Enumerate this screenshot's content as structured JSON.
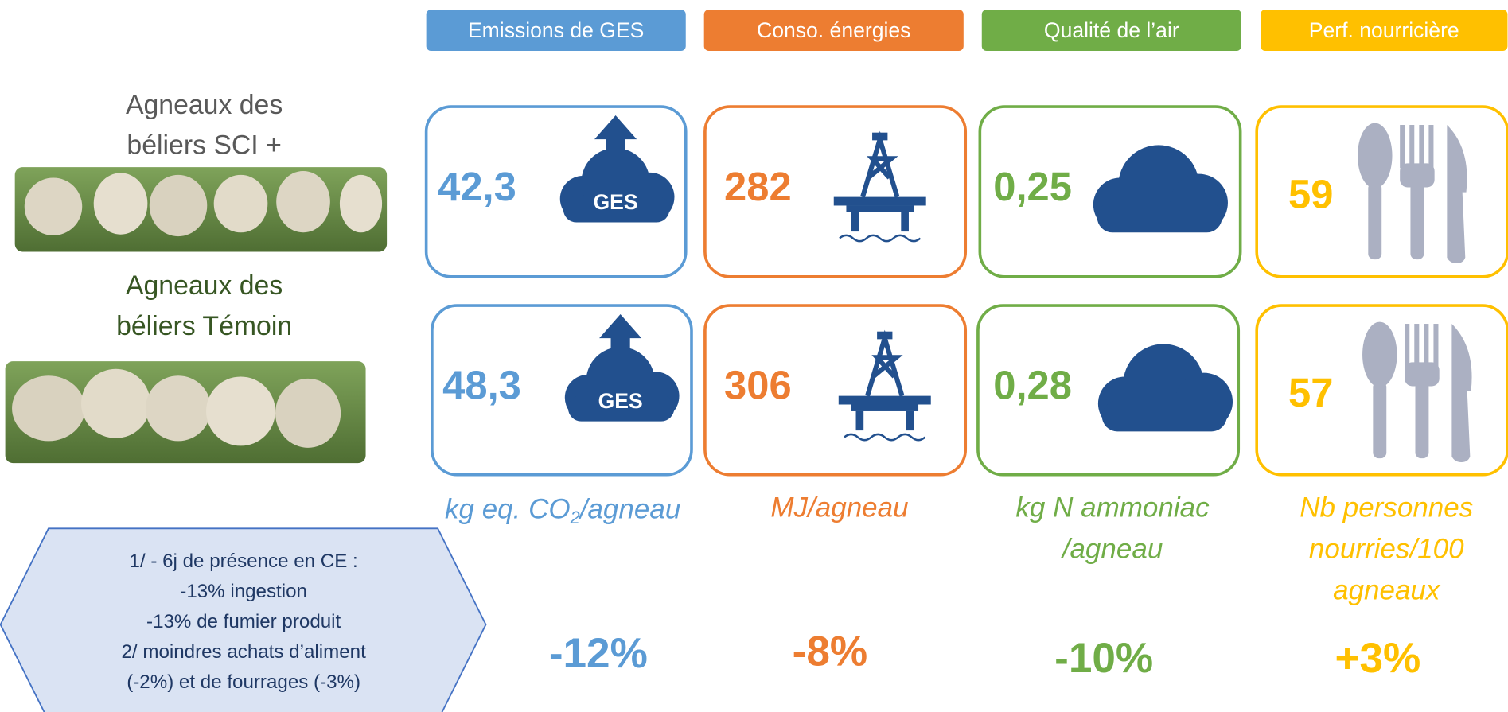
{
  "headers": [
    "Emissions de GES",
    "Conso. énergies",
    "Qualité de l’air",
    "Perf. nourricière"
  ],
  "rows": [
    {
      "label": [
        "Agneaux des",
        "béliers SCI +"
      ],
      "values": [
        "42,3",
        "282",
        "0,25",
        "59"
      ]
    },
    {
      "label": [
        "Agneaux des",
        "béliers Témoin"
      ],
      "values": [
        "48,3",
        "306",
        "0,28",
        "57"
      ]
    }
  ],
  "icon_label": "GES",
  "units": [
    [
      "kg eq. CO",
      "2",
      "/agneau"
    ],
    [
      "MJ/agneau"
    ],
    [
      "kg N ammoniac",
      "/agneau"
    ],
    [
      "Nb personnes",
      "nourries/100",
      "agneaux"
    ]
  ],
  "changes": [
    "-12%",
    "-8%",
    "-10%",
    "+3%"
  ],
  "note": [
    "1/ - 6j de présence en CE :",
    "-13% ingestion",
    "-13% de fumier produit",
    "2/ moindres achats d’aliment",
    "(-2%) et de fourrages (-3%)"
  ]
}
